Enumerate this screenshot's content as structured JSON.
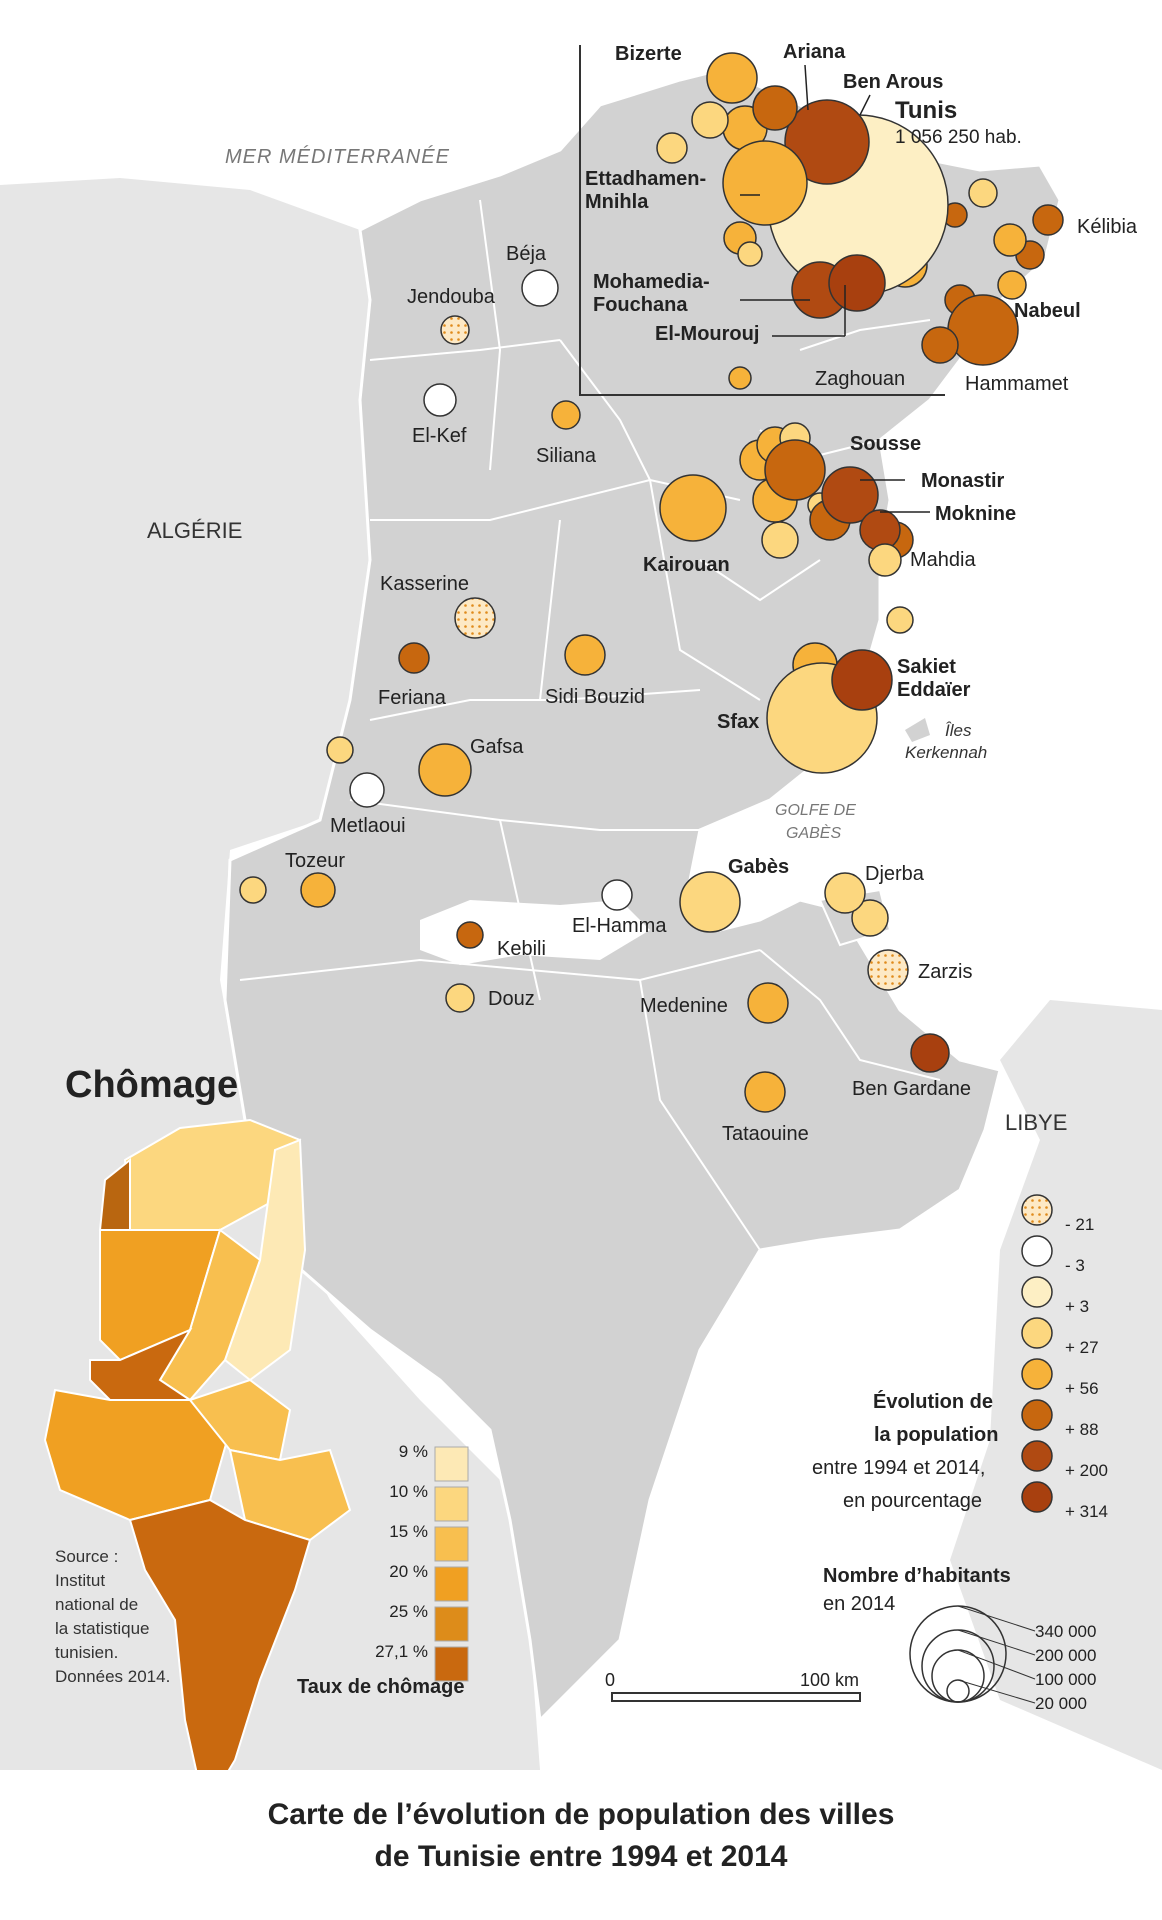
{
  "sea_label": "MER MÉDITERRANÉE",
  "gulf_label": "GOLFE DE GABÈS",
  "countries": {
    "algeria": "ALGÉRIE",
    "libya": "LIBYE"
  },
  "islands": "Îles Kerkennah",
  "tunis_population": "1 056 250 hab.",
  "colors": {
    "sea": "#ffffff",
    "land_other": "#e4e4e4",
    "tunisia": "#d0d0d0",
    "border": "#ffffff",
    "class_-21": "#fde9c5",
    "class_-3": "#ffffff",
    "class_3": "#fdefc4",
    "class_27": "#fcd77f",
    "class_56": "#f6b23a",
    "class_88": "#c7670f",
    "class_200": "#b04a12",
    "class_314": "#a8400f"
  },
  "cities": [
    {
      "name": "Bizerte",
      "cls": "56",
      "bold": true
    },
    {
      "name": "Ariana",
      "cls": "200",
      "bold": true
    },
    {
      "name": "Ben Arous",
      "cls": "88",
      "bold": true
    },
    {
      "name": "Tunis",
      "cls": "3",
      "bold": true
    },
    {
      "name": "Ettadhamen-Mnihla",
      "cls": "56",
      "bold": true
    },
    {
      "name": "Mohamedia-Fouchana",
      "cls": "200",
      "bold": true
    },
    {
      "name": "El-Mourouj",
      "cls": "314",
      "bold": true
    },
    {
      "name": "Zaghouan",
      "cls": "56",
      "bold": false
    },
    {
      "name": "Kélibia",
      "cls": "88",
      "bold": false
    },
    {
      "name": "Nabeul",
      "cls": "88",
      "bold": true
    },
    {
      "name": "Hammamet",
      "cls": "88",
      "bold": false
    },
    {
      "name": "Béja",
      "cls": "-3",
      "bold": false
    },
    {
      "name": "Jendouba",
      "cls": "-21",
      "bold": false
    },
    {
      "name": "El-Kef",
      "cls": "-3",
      "bold": false
    },
    {
      "name": "Siliana",
      "cls": "56",
      "bold": false
    },
    {
      "name": "Sousse",
      "cls": "88",
      "bold": true
    },
    {
      "name": "Monastir",
      "cls": "200",
      "bold": true
    },
    {
      "name": "Moknine",
      "cls": "200",
      "bold": true
    },
    {
      "name": "Mahdia",
      "cls": "27",
      "bold": false
    },
    {
      "name": "Kairouan",
      "cls": "56",
      "bold": true
    },
    {
      "name": "Kasserine",
      "cls": "-21",
      "bold": false
    },
    {
      "name": "Feriana",
      "cls": "88",
      "bold": false
    },
    {
      "name": "Sidi Bouzid",
      "cls": "56",
      "bold": false
    },
    {
      "name": "Sakiet Eddaïer",
      "cls": "314",
      "bold": true
    },
    {
      "name": "Sfax",
      "cls": "27",
      "bold": true
    },
    {
      "name": "Gafsa",
      "cls": "56",
      "bold": false
    },
    {
      "name": "Metlaoui",
      "cls": "-3",
      "bold": false
    },
    {
      "name": "Tozeur",
      "cls": "56",
      "bold": false
    },
    {
      "name": "El-Hamma",
      "cls": "-3",
      "bold": false
    },
    {
      "name": "Gabès",
      "cls": "27",
      "bold": true
    },
    {
      "name": "Djerba",
      "cls": "27",
      "bold": false
    },
    {
      "name": "Kebili",
      "cls": "88",
      "bold": false
    },
    {
      "name": "Douz",
      "cls": "27",
      "bold": false
    },
    {
      "name": "Zarzis",
      "cls": "-21",
      "bold": false
    },
    {
      "name": "Medenine",
      "cls": "56",
      "bold": false
    },
    {
      "name": "Ben Gardane",
      "cls": "314",
      "bold": false
    },
    {
      "name": "Tataouine",
      "cls": "56",
      "bold": false
    }
  ],
  "legend_evolution": {
    "title_line1": "Évolution de",
    "title_line2": "la population",
    "sub_line1": "entre 1994 et 2014,",
    "sub_line2": "en pourcentage",
    "classes": [
      "- 21",
      "- 3",
      "+ 3",
      "+ 27",
      "+ 56",
      "+ 88",
      "+ 200",
      "+ 314"
    ]
  },
  "legend_size": {
    "title": "Nombre d’habitants",
    "subtitle": "en 2014",
    "values": [
      "340 000",
      "200 000",
      "100 000",
      "20 000"
    ]
  },
  "scale": {
    "start": "0",
    "end": "100 km"
  },
  "inset": {
    "title": "Chômage",
    "legend_title": "Taux de chômage",
    "classes": [
      "9 %",
      "10 %",
      "15 %",
      "20 %",
      "25 %",
      "27,1 %"
    ],
    "class_colors": [
      "#fde9b5",
      "#fcd77f",
      "#f8bf4f",
      "#f0a022",
      "#dd8c1a",
      "#c9690f"
    ],
    "source": [
      "Source :",
      "Institut",
      "national de",
      "la statistique",
      "tunisien.",
      "Données 2014."
    ]
  },
  "caption_line1": "Carte de l’évolution de population des villes",
  "caption_line2": "de Tunisie entre 1994 et 2014"
}
